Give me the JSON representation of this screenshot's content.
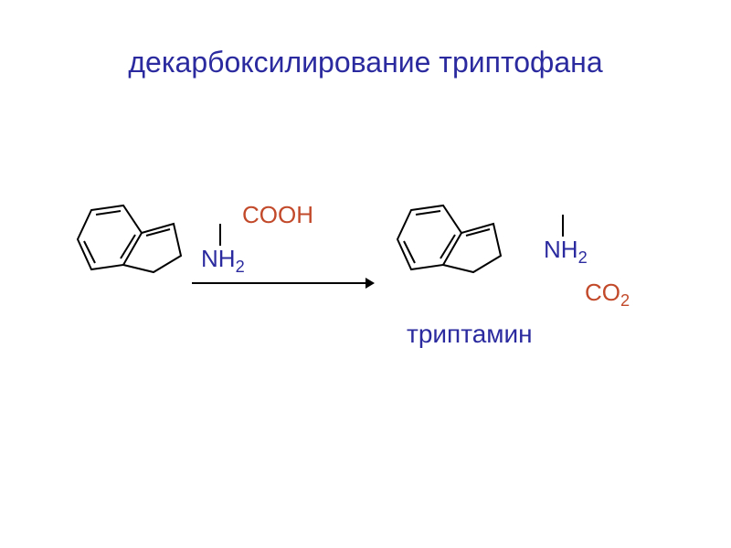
{
  "title": {
    "text": "декарбоксилирование триптофана",
    "color": "#2b2b9f",
    "fontsize": 32
  },
  "labels": {
    "cooh": {
      "text": "COOH",
      "color": "#c24a2b"
    },
    "nh2_l_html": "NH<sub>2</sub>",
    "nh2_r_html": "NH<sub>2</sub>",
    "co2_html": "CO<sub>2</sub>",
    "nh2_color": "#2b2b9f",
    "co2_color": "#c24a2b",
    "product": {
      "text": "триптамин",
      "color": "#2b2b9f"
    }
  },
  "colors": {
    "title": "#2b2b9f",
    "background": "#ffffff",
    "bond": "#000000",
    "arrow": "#000000"
  },
  "diagram": {
    "type": "chemical-reaction",
    "indole_svg_width": 130,
    "indole_svg_height": 110,
    "bond_width": 2
  }
}
